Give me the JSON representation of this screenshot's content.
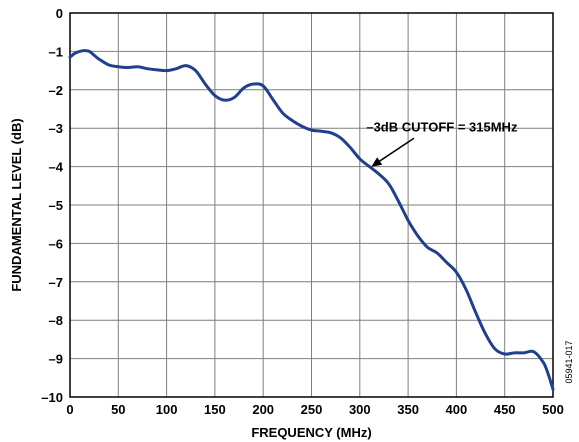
{
  "chart_data": {
    "type": "line",
    "title": "",
    "xlabel": "FREQUENCY (MHz)",
    "ylabel": "FUNDAMENTAL LEVEL (dB)",
    "xlim": [
      0,
      500
    ],
    "ylim": [
      -10,
      0
    ],
    "xticks": [
      0,
      50,
      100,
      150,
      200,
      250,
      300,
      350,
      400,
      450,
      500
    ],
    "yticks": [
      0,
      -1,
      -2,
      -3,
      -4,
      -5,
      -6,
      -7,
      -8,
      -9,
      -10
    ],
    "ytick_labels": [
      "0",
      "–1",
      "–2",
      "–3",
      "–4",
      "–5",
      "–6",
      "–7",
      "–8",
      "–9",
      "–10"
    ],
    "grid": true,
    "line_color": "#1f3f8f",
    "series": [
      {
        "x": [
          0,
          5,
          10,
          15,
          20,
          25,
          30,
          40,
          50,
          60,
          70,
          80,
          90,
          100,
          110,
          120,
          130,
          140,
          150,
          160,
          170,
          180,
          190,
          200,
          210,
          220,
          230,
          240,
          250,
          260,
          270,
          280,
          290,
          300,
          310,
          320,
          330,
          340,
          350,
          360,
          370,
          380,
          390,
          400,
          410,
          420,
          430,
          440,
          450,
          460,
          470,
          480,
          490,
          495,
          500
        ],
        "values": [
          -1.15,
          -1.05,
          -1.0,
          -0.98,
          -1.0,
          -1.1,
          -1.2,
          -1.35,
          -1.4,
          -1.42,
          -1.4,
          -1.45,
          -1.48,
          -1.5,
          -1.45,
          -1.37,
          -1.5,
          -1.85,
          -2.15,
          -2.27,
          -2.2,
          -1.95,
          -1.85,
          -1.9,
          -2.25,
          -2.6,
          -2.8,
          -2.95,
          -3.05,
          -3.08,
          -3.12,
          -3.25,
          -3.5,
          -3.8,
          -4.0,
          -4.2,
          -4.45,
          -4.9,
          -5.4,
          -5.8,
          -6.1,
          -6.25,
          -6.5,
          -6.75,
          -7.2,
          -7.8,
          -8.35,
          -8.75,
          -8.88,
          -8.85,
          -8.85,
          -8.82,
          -9.1,
          -9.4,
          -9.8
        ]
      }
    ],
    "annotation": {
      "text": "–3dB CUTOFF = 315MHz",
      "text_at": [
        385,
        -2.95
      ],
      "arrow_to": [
        312,
        -4.0
      ]
    },
    "figure_id": "05941-017"
  }
}
